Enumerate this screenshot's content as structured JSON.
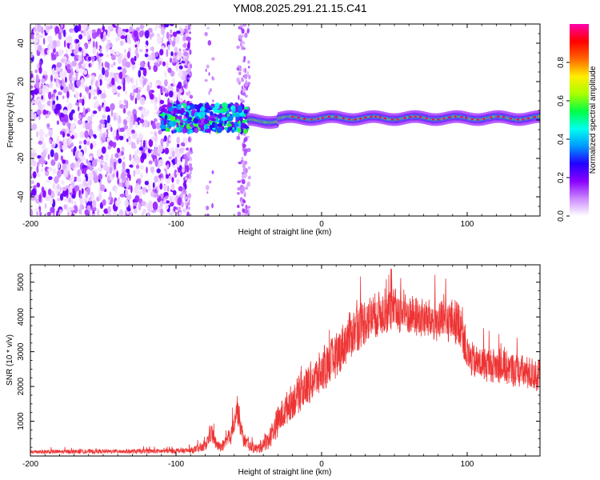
{
  "title": "YM08.2025.291.21.15.C41",
  "chart_data": [
    {
      "type": "heatmap",
      "name": "spectrogram",
      "xlabel": "Height of straight line (km)",
      "ylabel": "Frequency (Hz)",
      "xlim": [
        -200,
        150
      ],
      "ylim": [
        -50,
        50
      ],
      "x_ticks": [
        -200,
        -100,
        0,
        100
      ],
      "x_tick_labels": [
        "-200",
        "-100",
        "0",
        "100"
      ],
      "y_ticks": [
        -40,
        -20,
        0,
        20,
        40
      ],
      "y_tick_labels": [
        "-40",
        "-20",
        "0",
        "20",
        "40"
      ],
      "colorbar": {
        "label": "Normalized spectral amplitude",
        "range": [
          0,
          1
        ],
        "ticks": [
          0.0,
          0.2,
          0.4,
          0.6,
          0.8
        ],
        "tick_labels": [
          "0.0",
          "0.2",
          "0.4",
          "0.6",
          "0.8"
        ],
        "colors": [
          "#ffffff",
          "#cc88ff",
          "#8800ff",
          "#2200ff",
          "#0099ff",
          "#00ffee",
          "#00ff44",
          "#aaff00",
          "#ffee00",
          "#ff6600",
          "#ff0000",
          "#ff00aa"
        ]
      },
      "regions": [
        {
          "label": "broadband noise",
          "x_range": [
            -200,
            -90
          ],
          "freq_range": [
            -50,
            50
          ],
          "typical_amplitude": 0.1
        },
        {
          "label": "transition",
          "x_range": [
            -110,
            -50
          ],
          "freq_range": [
            -6,
            8
          ],
          "typical_amplitude": 0.45
        },
        {
          "label": "narrow tone near 0 Hz",
          "x_range": [
            -50,
            150
          ],
          "freq_center": 1,
          "freq_halfwidth": 4,
          "peak_amplitude": 0.95
        }
      ]
    },
    {
      "type": "line",
      "name": "snr",
      "xlabel": "Height of straight line (km)",
      "ylabel": "SNR (10 * v/v)",
      "xlim": [
        -200,
        150
      ],
      "ylim": [
        0,
        5500
      ],
      "x_ticks": [
        -200,
        -100,
        0,
        100
      ],
      "x_tick_labels": [
        "-200",
        "-100",
        "0",
        "100"
      ],
      "y_ticks": [
        1000,
        2000,
        3000,
        4000,
        5000
      ],
      "y_tick_labels": [
        "1000",
        "2000",
        "3000",
        "4000",
        "5000"
      ],
      "color": "#ee3333",
      "series": [
        {
          "name": "SNR",
          "x": [
            -200,
            -150,
            -110,
            -90,
            -80,
            -76,
            -72,
            -68,
            -62,
            -58,
            -54,
            -50,
            -44,
            -36,
            -30,
            -22,
            -15,
            -8,
            0,
            10,
            20,
            30,
            40,
            50,
            60,
            70,
            80,
            90,
            96,
            100,
            105,
            110,
            120,
            130,
            140,
            150
          ],
          "y": [
            120,
            130,
            140,
            160,
            250,
            700,
            300,
            250,
            600,
            1400,
            500,
            300,
            200,
            500,
            1000,
            1500,
            1800,
            2100,
            2400,
            2900,
            3500,
            3900,
            4100,
            4200,
            4050,
            3950,
            3850,
            3900,
            3800,
            2900,
            2700,
            2650,
            2600,
            2500,
            2400,
            2300
          ],
          "noise": [
            60,
            60,
            70,
            80,
            150,
            300,
            150,
            150,
            250,
            450,
            250,
            150,
            150,
            300,
            450,
            500,
            550,
            600,
            650,
            650,
            700,
            700,
            650,
            650,
            600,
            600,
            600,
            650,
            700,
            550,
            500,
            500,
            500,
            500,
            500,
            500
          ]
        }
      ]
    }
  ]
}
